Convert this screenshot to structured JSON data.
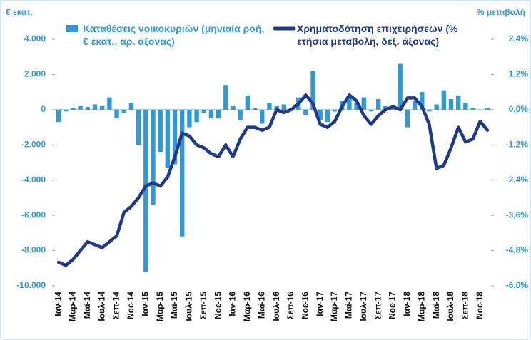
{
  "chart_data": {
    "type": "bar",
    "y_axis_title": "€ εκατ.",
    "y2_axis_title": "% μεταβολή",
    "categories": [
      "Ιαν-14",
      null,
      "Μαρ-14",
      null,
      "Μαϊ-14",
      null,
      "Ιουλ-14",
      null,
      "Σεπ-14",
      null,
      "Νοε-14",
      null,
      "Ιαν-15",
      null,
      "Μαρ-15",
      null,
      "Μαϊ-15",
      null,
      "Ιουλ-15",
      null,
      "Σεπ-15",
      null,
      "Νοε-15",
      null,
      "Ιαν-16",
      null,
      "Μαρ-16",
      null,
      "Μαϊ-16",
      null,
      "Ιουλ-16",
      null,
      "Σεπ-16",
      null,
      "Νοε-16",
      null,
      "Ιαν-17",
      null,
      "Μαρ-17",
      null,
      "Μαϊ-17",
      null,
      "Ιουλ-17",
      null,
      "Σεπ-17",
      null,
      "Νοε-17",
      null,
      "Ιαν-18",
      null,
      "Μαρ-18",
      null,
      "Μαϊ-18",
      null,
      "Ιουλ-18",
      null,
      "Σεπ-18",
      null,
      "Νοε-18",
      null
    ],
    "series": [
      {
        "name": "Καταθέσεις νοικοκυριών (μηνιαία ροή, € εκατ., αρ. άξονας)",
        "type": "bar",
        "color": "#2f9ad6",
        "values": [
          -700,
          -100,
          100,
          200,
          150,
          300,
          200,
          700,
          -500,
          -200,
          400,
          -2000,
          -9200,
          -5400,
          -2400,
          -3300,
          -3100,
          -7200,
          -1000,
          -700,
          -200,
          -500,
          -500,
          1400,
          200,
          -600,
          800,
          100,
          -800,
          400,
          200,
          300,
          100,
          700,
          -300,
          2200,
          -600,
          -700,
          -100,
          500,
          700,
          400,
          700,
          -100,
          600,
          200,
          100,
          2600,
          -1000,
          500,
          1000,
          -100,
          300,
          1100,
          600,
          800,
          400,
          100,
          0,
          100
        ]
      },
      {
        "name": "Χρηματοδότηση επιχειρήσεων (% ετήσια μεταβολή, δεξ. άξονας)",
        "type": "line",
        "axis": "y2",
        "color": "#1f3a8c",
        "values": [
          -5.2,
          -5.3,
          -5.1,
          -4.8,
          -4.5,
          -4.6,
          -4.7,
          -4.5,
          -4.3,
          -3.5,
          -3.3,
          -3.0,
          -2.6,
          -2.5,
          -2.6,
          -2.3,
          -1.6,
          -0.8,
          -0.9,
          -1.2,
          -1.3,
          -1.5,
          -1.6,
          -1.2,
          -1.6,
          -1.0,
          -0.6,
          -0.6,
          -0.7,
          -0.6,
          0.0,
          -0.1,
          0.0,
          0.2,
          0.5,
          0.2,
          -0.5,
          -0.6,
          -0.4,
          0.1,
          0.5,
          0.3,
          -0.2,
          -0.5,
          -0.2,
          0.0,
          0.1,
          0.0,
          0.4,
          0.4,
          0.1,
          -0.5,
          -2.0,
          -1.9,
          -1.3,
          -0.6,
          -1.1,
          -1.0,
          -0.4,
          -0.7
        ]
      }
    ],
    "ylim": [
      -10000,
      4000
    ],
    "yticks": [
      {
        "value": -10000,
        "label": "-10.000"
      },
      {
        "value": -8000,
        "label": "-8.000"
      },
      {
        "value": -6000,
        "label": "-6.000"
      },
      {
        "value": -4000,
        "label": "-4.000"
      },
      {
        "value": -2000,
        "label": "-2.000"
      },
      0,
      {
        "value": 2000,
        "label": "2.000"
      },
      {
        "value": 4000,
        "label": "4.000"
      }
    ],
    "y2lim": [
      -6.0,
      2.4
    ],
    "y2ticks": [
      {
        "value": -6.0,
        "label": "-6,0%"
      },
      {
        "value": -4.8,
        "label": "-4,8%"
      },
      {
        "value": -3.6,
        "label": "-3,6%"
      },
      {
        "value": -2.4,
        "label": "-2,4%"
      },
      {
        "value": -1.2,
        "label": "-1,2%"
      },
      {
        "value": 0,
        "label": "0,0%"
      },
      {
        "value": 1.2,
        "label": "1,2%"
      },
      {
        "value": 2.4,
        "label": "2,4%"
      }
    ],
    "grid": false,
    "legend": "top"
  }
}
